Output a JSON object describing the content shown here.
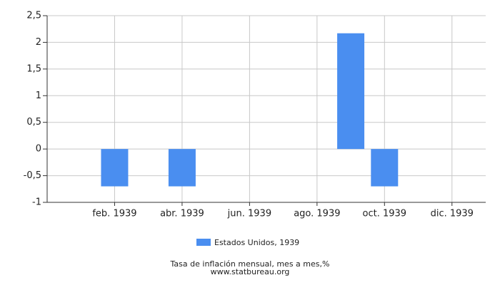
{
  "chart_data": {
    "type": "bar",
    "categories": [
      null,
      "feb. 1939",
      null,
      "abr. 1939",
      null,
      "jun. 1939",
      null,
      "ago. 1939",
      null,
      "oct. 1939",
      null,
      "dic. 1939"
    ],
    "series": [
      {
        "name": "Estados Unidos, 1939",
        "color": "#4a8ef0",
        "values": [
          0,
          -0.7,
          0,
          -0.7,
          0,
          0,
          0,
          0,
          2.17,
          -0.7,
          0,
          0
        ]
      }
    ],
    "ylim": [
      -1,
      2.5
    ],
    "yticks": [
      -1,
      {
        "value": -0.5,
        "label": "-0,5"
      },
      0,
      {
        "value": 0.5,
        "label": "0,5"
      },
      1,
      {
        "value": 1.5,
        "label": "1,5"
      },
      2,
      {
        "value": 2.5,
        "label": "2,5"
      }
    ],
    "grid": true,
    "xlabel": "Tasa de inflación mensual, mes a mes,%",
    "source": "www.statbureau.org"
  }
}
